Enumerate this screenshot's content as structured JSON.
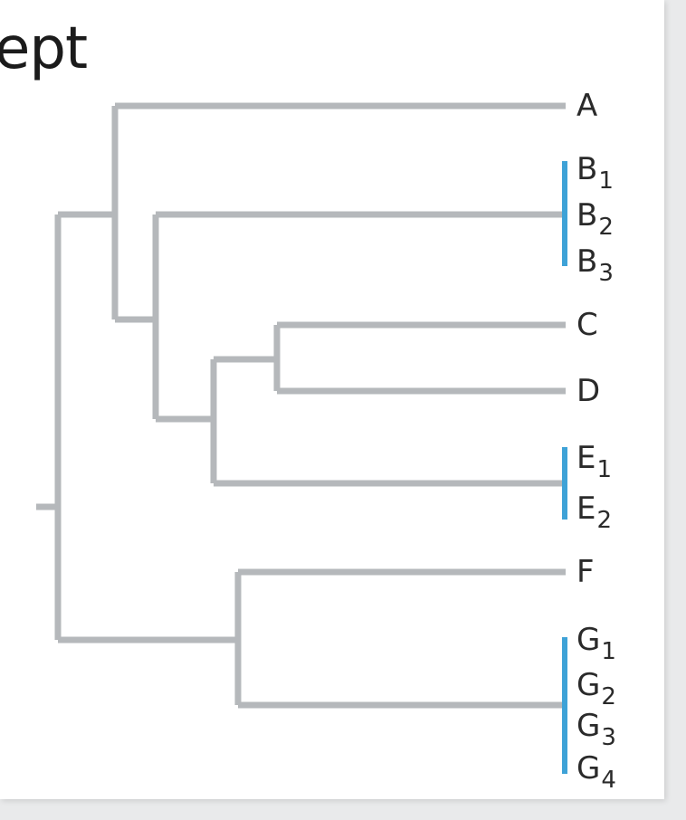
{
  "title_fragment": "ept",
  "colors": {
    "branch": "#b5b8bb",
    "group_bar": "#3ea2d7",
    "text": "#2a2a2a"
  },
  "leaves": [
    {
      "base": "A",
      "sub": ""
    },
    {
      "base": "B",
      "sub": "1"
    },
    {
      "base": "B",
      "sub": "2"
    },
    {
      "base": "B",
      "sub": "3"
    },
    {
      "base": "C",
      "sub": ""
    },
    {
      "base": "D",
      "sub": ""
    },
    {
      "base": "E",
      "sub": "1"
    },
    {
      "base": "E",
      "sub": "2"
    },
    {
      "base": "F",
      "sub": ""
    },
    {
      "base": "G",
      "sub": "1"
    },
    {
      "base": "G",
      "sub": "2"
    },
    {
      "base": "G",
      "sub": "3"
    },
    {
      "base": "G",
      "sub": "4"
    }
  ]
}
